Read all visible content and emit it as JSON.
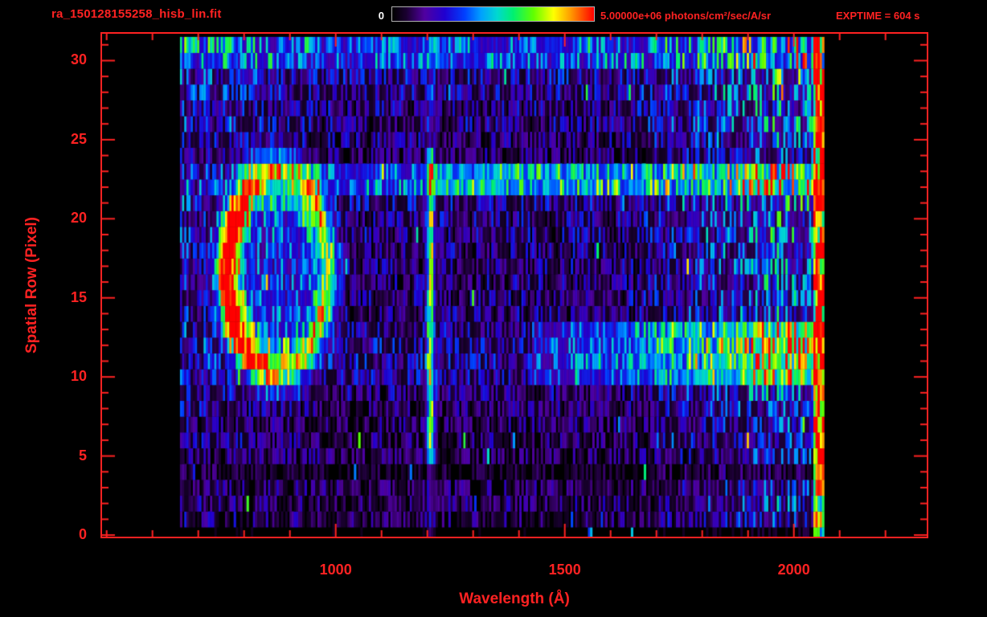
{
  "theme": {
    "page-bg": "#000000",
    "accent": "#ff2222",
    "light-label": "#ffffff",
    "colorbar-border": "#b0b0b0"
  },
  "header": {
    "title": "ra_150128155258_hisb_lin.fit",
    "colorbar_min_label": "0",
    "colorbar_max_label": "5.00000e+06 photons/cm²/sec/A/sr",
    "exptime_label": "EXPTIME = 604 s"
  },
  "chart_data": {
    "type": "heatmap",
    "title": "ra_150128155258_hisb_lin.fit",
    "xlabel": "Wavelength (Å)",
    "ylabel": "Spatial Row (Pixel)",
    "x_ticks": [
      1000,
      1500,
      2000
    ],
    "x_minor_step": 100,
    "x_minor_range": [
      500,
      2200
    ],
    "y_ticks": [
      0,
      5,
      10,
      15,
      20,
      25,
      30
    ],
    "y_minor_step": 1,
    "x_axis_range": [
      490,
      2290
    ],
    "y_axis_range": [
      -0.1,
      31.7
    ],
    "data_wavelength_range": [
      660,
      2066
    ],
    "spatial_rows": 31,
    "colorbar": {
      "min_value": 0,
      "max_value": 5000000,
      "max_value_text": "5.00000e+06",
      "units": "photons/cm²/sec/A/sr"
    },
    "exposure_time_s": 604,
    "colormap_stops": [
      [
        0,
        "#000000"
      ],
      [
        0.07,
        "#1a0030"
      ],
      [
        0.16,
        "#5000a0"
      ],
      [
        0.26,
        "#2000d0"
      ],
      [
        0.36,
        "#0040ff"
      ],
      [
        0.44,
        "#00a0ff"
      ],
      [
        0.52,
        "#00d8d0"
      ],
      [
        0.6,
        "#00f070"
      ],
      [
        0.7,
        "#60ff00"
      ],
      [
        0.8,
        "#ffff00"
      ],
      [
        0.88,
        "#ffa000"
      ],
      [
        1,
        "#ff0000"
      ]
    ],
    "row_background_levels": [
      0.06,
      0.3,
      0.34,
      0.3,
      0.16,
      0.3,
      0.34,
      0.32,
      0.36,
      0.4,
      0.46,
      0.5,
      0.5,
      0.46,
      0.4,
      0.4,
      0.4,
      0.4,
      0.42,
      0.44,
      0.44,
      0.48,
      0.55,
      0.52,
      0.34,
      0.4,
      0.44,
      0.42,
      0.46,
      0.5,
      0.55
    ],
    "column_envelope": [
      [
        660,
        0.75
      ],
      [
        1000,
        0.55
      ],
      [
        1620,
        0.55
      ],
      [
        1900,
        1.0
      ],
      [
        1935,
        1.15
      ],
      [
        2044,
        1.15
      ]
    ],
    "features": [
      {
        "type": "ring",
        "name": "coma-ring",
        "center_wavelength": 872,
        "center_row": 16.7,
        "radius_wavelength": 108,
        "radius_rows": 6.2,
        "width": 0.21,
        "amplitude": 0.62,
        "left_boost": 0.58,
        "interior_level": 0.15
      },
      {
        "type": "emission-line",
        "name": "lyman-alpha",
        "wavelength": 1207,
        "sigma": 8,
        "row_min": 4.6,
        "row_max": 24.2,
        "amplitude": 0.55,
        "wing_amplitude": 0.1
      },
      {
        "type": "horizontal-band",
        "name": "upper-spatial-band",
        "row_min": 21.5,
        "row_max": 23.4,
        "wavelength_min": 935,
        "wavelength_max": 2066,
        "amplitude": 0.3,
        "pre_line_amplitude": 0.16,
        "pre_line_wavelength": 1205
      },
      {
        "type": "horizontal-band",
        "name": "lower-right-band",
        "row_min": 9.5,
        "row_max": 13.5,
        "wavelength_min": 1430,
        "wavelength_max": 2066,
        "amplitude": 0.38,
        "ramp_start": 1430,
        "ramp_end": 1960
      },
      {
        "type": "top-row-band",
        "name": "top-row",
        "row_min": 29.5,
        "amplitude": 0.15
      },
      {
        "type": "bright-edge",
        "name": "detector-edge-column",
        "wavelength_min": 2044,
        "wavelength_max": 2066
      }
    ],
    "noise_seed": 1337
  }
}
